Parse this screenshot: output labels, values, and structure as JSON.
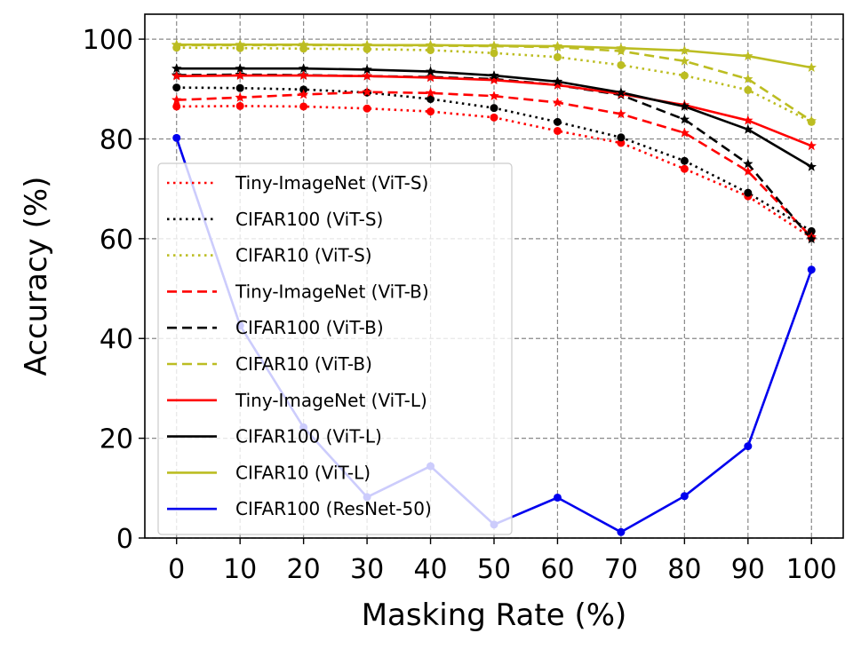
{
  "chart_data": {
    "type": "line",
    "title": "",
    "xlabel": "Masking Rate (%)",
    "ylabel": "Accuracy (%)",
    "xlim": [
      -5,
      105
    ],
    "ylim": [
      0,
      105
    ],
    "grid": true,
    "legend_position": "center-left",
    "x": [
      0,
      10,
      20,
      30,
      40,
      50,
      60,
      70,
      80,
      90,
      100
    ],
    "x_ticks": [
      0,
      10,
      20,
      30,
      40,
      50,
      60,
      70,
      80,
      90,
      100
    ],
    "x_tick_labels": [
      "0",
      "10",
      "20",
      "30",
      "40",
      "50",
      "60",
      "70",
      "80",
      "90",
      "100"
    ],
    "y_ticks": [
      0,
      20,
      40,
      60,
      80,
      100
    ],
    "y_tick_labels": [
      "0",
      "20",
      "40",
      "60",
      "80",
      "100"
    ],
    "series": [
      {
        "name": "Tiny-ImageNet (ViT-S)",
        "color": "#ff0000",
        "linestyle": "dotted",
        "marker": "circle",
        "values": [
          86.5,
          86.6,
          86.5,
          86.1,
          85.5,
          84.3,
          81.6,
          79.2,
          74.0,
          68.5,
          60.2
        ]
      },
      {
        "name": "CIFAR100 (ViT-S)",
        "color": "#000000",
        "linestyle": "dotted",
        "marker": "circle",
        "values": [
          90.3,
          90.2,
          89.9,
          89.3,
          88.0,
          86.2,
          83.4,
          80.3,
          75.6,
          69.2,
          61.5
        ]
      },
      {
        "name": "CIFAR10 (ViT-S)",
        "color": "#bcbd22",
        "linestyle": "dotted",
        "marker": "circle",
        "values": [
          98.3,
          98.2,
          98.1,
          98.0,
          97.8,
          97.2,
          96.4,
          94.8,
          92.7,
          89.8,
          83.4
        ]
      },
      {
        "name": "Tiny-ImageNet (ViT-B)",
        "color": "#ff0000",
        "linestyle": "dashed",
        "marker": "star",
        "values": [
          87.8,
          88.3,
          88.9,
          89.4,
          89.2,
          88.6,
          87.3,
          85.0,
          81.2,
          73.5,
          60.3
        ]
      },
      {
        "name": "CIFAR100 (ViT-B)",
        "color": "#000000",
        "linestyle": "dashed",
        "marker": "star",
        "values": [
          92.8,
          92.9,
          92.8,
          92.6,
          92.4,
          92.0,
          90.8,
          88.8,
          83.9,
          75.0,
          59.9
        ]
      },
      {
        "name": "CIFAR10 (ViT-B)",
        "color": "#bcbd22",
        "linestyle": "dashed",
        "marker": "star",
        "values": [
          98.8,
          98.8,
          98.8,
          98.8,
          98.7,
          98.6,
          98.4,
          97.6,
          95.6,
          92.0,
          83.6
        ]
      },
      {
        "name": "Tiny-ImageNet (ViT-L)",
        "color": "#ff0000",
        "linestyle": "solid",
        "marker": "star",
        "values": [
          92.6,
          92.7,
          92.7,
          92.6,
          92.3,
          91.8,
          90.8,
          89.0,
          86.8,
          83.7,
          78.6
        ]
      },
      {
        "name": "CIFAR100 (ViT-L)",
        "color": "#000000",
        "linestyle": "solid",
        "marker": "star",
        "values": [
          94.1,
          94.1,
          94.1,
          93.9,
          93.5,
          92.7,
          91.5,
          89.3,
          86.5,
          81.9,
          74.4
        ]
      },
      {
        "name": "CIFAR10 (ViT-L)",
        "color": "#bcbd22",
        "linestyle": "solid",
        "marker": "star",
        "values": [
          98.9,
          98.9,
          98.9,
          98.8,
          98.8,
          98.7,
          98.6,
          98.2,
          97.7,
          96.6,
          94.3
        ]
      },
      {
        "name": "CIFAR100 (ResNet-50)",
        "color": "#0000ee",
        "linestyle": "solid",
        "marker": "circle",
        "values": [
          80.2,
          42.6,
          22.2,
          8.2,
          14.4,
          2.7,
          8.1,
          1.2,
          8.4,
          18.4,
          53.8
        ]
      }
    ]
  }
}
